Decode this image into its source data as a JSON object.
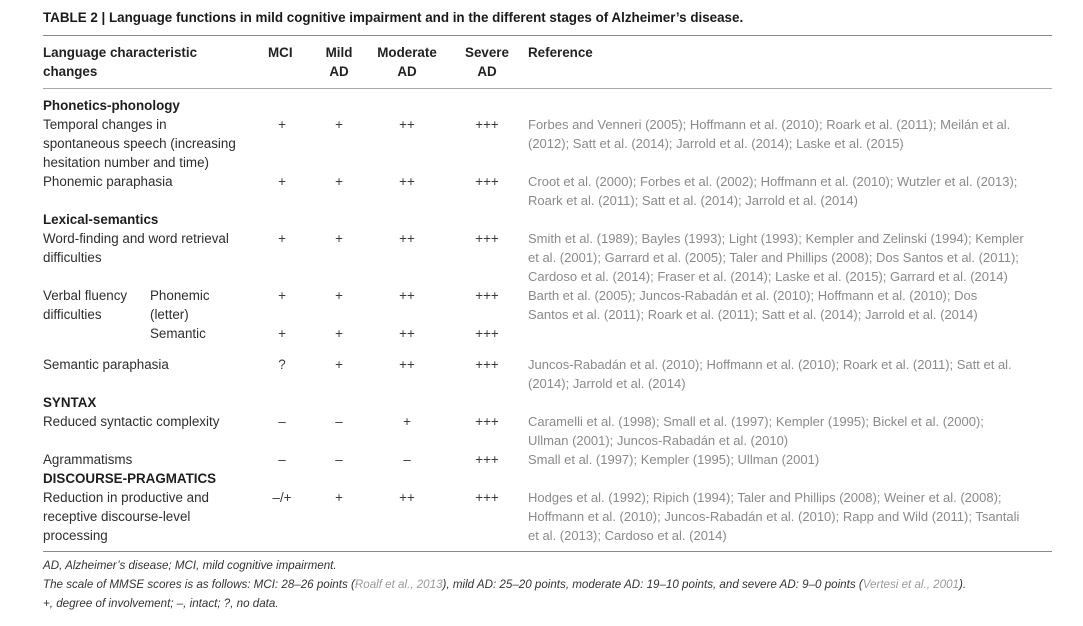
{
  "caption": "TABLE 2 | Language functions in mild cognitive impairment and in the different stages of Alzheimer’s disease.",
  "header": {
    "col1_line1": "Language characteristic",
    "col1_line2": "changes",
    "mci": "MCI",
    "mild_line1": "Mild",
    "mild_line2": "AD",
    "moderate_line1": "Moderate",
    "moderate_line2": "AD",
    "severe_line1": "Severe",
    "severe_line2": "AD",
    "reference": "Reference"
  },
  "sections": {
    "phonetics": "Phonetics-phonology",
    "lexical": "Lexical-semantics",
    "syntax": "SYNTAX",
    "discourse": "DISCOURSE-PRAGMATICS"
  },
  "rows": {
    "temporal": {
      "label": [
        "Temporal changes in",
        "spontaneous speech (increasing",
        "hesitation number and time)"
      ],
      "mci": "+",
      "mild": "+",
      "moderate": "++",
      "severe": "+++",
      "ref": [
        "Forbes and Venneri (2005); Hoffmann et al. (2010); Roark et al. (2011); Meilán et al.",
        "(2012); Satt et al. (2014); Jarrold et al. (2014); Laske et al. (2015)"
      ]
    },
    "phonemic_para": {
      "label": [
        "Phonemic paraphasia"
      ],
      "mci": "+",
      "mild": "+",
      "moderate": "++",
      "severe": "+++",
      "ref": [
        "Croot et al. (2000); Forbes et al. (2002); Hoffmann et al. (2010); Wutzler et al. (2013);",
        "Roark et al. (2011); Satt et al. (2014); Jarrold et al. (2014)"
      ]
    },
    "word_finding": {
      "label": [
        "Word-finding and word retrieval",
        "difficulties"
      ],
      "mci": "+",
      "mild": "+",
      "moderate": "++",
      "severe": "+++",
      "ref": [
        "Smith et al. (1989); Bayles (1993); Light (1993); Kempler and Zelinski (1994); Kempler",
        "et al. (2001); Garrard et al. (2005); Taler and Phillips (2008); Dos Santos et al. (2011);",
        "Cardoso et al. (2014); Fraser et al. (2014); Laske et al. (2015); Garrard et al. (2014)"
      ]
    },
    "verbal_fluency": {
      "label": [
        "Verbal fluency",
        "difficulties"
      ],
      "phonemic_label": [
        "Phonemic",
        "(letter)"
      ],
      "mci": "+",
      "mild": "+",
      "moderate": "++",
      "severe": "+++",
      "ref": [
        "Barth et al. (2005); Juncos-Rabadán et al. (2010); Hoffmann et al. (2010); Dos",
        "Santos et al. (2011); Roark et al. (2011); Satt et al. (2014); Jarrold et al. (2014)"
      ]
    },
    "semantic_fluency": {
      "label": [
        "Semantic"
      ],
      "mci": "+",
      "mild": "+",
      "moderate": "++",
      "severe": "+++"
    },
    "semantic_para": {
      "label": [
        "Semantic paraphasia"
      ],
      "mci": "?",
      "mild": "+",
      "moderate": "++",
      "severe": "+++",
      "ref": [
        "Juncos-Rabadán et al. (2010); Hoffmann et al. (2010); Roark et al. (2011); Satt et al.",
        "(2014); Jarrold et al. (2014)"
      ]
    },
    "syntactic": {
      "label": [
        "Reduced syntactic complexity"
      ],
      "mci": "–",
      "mild": "–",
      "moderate": "+",
      "severe": "+++",
      "ref": [
        "Caramelli et al. (1998); Small et al. (1997); Kempler (1995); Bickel et al. (2000);",
        "Ullman (2001); Juncos-Rabadán et al. (2010)"
      ]
    },
    "agrammatisms": {
      "label": [
        "Agrammatisms"
      ],
      "mci": "–",
      "mild": "–",
      "moderate": "–",
      "severe": "+++",
      "ref": [
        "Small et al. (1997); Kempler (1995); Ullman (2001)"
      ]
    },
    "discourse": {
      "label": [
        "Reduction in productive and",
        "receptive discourse-level",
        "processing"
      ],
      "mci": "–/+",
      "mild": "+",
      "moderate": "++",
      "severe": "+++",
      "ref": [
        "Hodges et al. (1992); Ripich (1994); Taler and Phillips (2008); Weiner et al. (2008);",
        "Hoffmann et al. (2010); Juncos-Rabadán et al. (2010); Rapp and Wild (2011); Tsantali",
        "et al. (2013); Cardoso et al. (2014)"
      ]
    }
  },
  "footnotes": {
    "line1": "AD, Alzheimer’s disease; MCI, mild cognitive impairment.",
    "line2_a": "The scale of MMSE scores is as follows: MCI: 28–26 points (",
    "line2_link1": "Roalf et al., 2013",
    "line2_b": "), mild AD: 25–20 points, moderate AD: 19–10 points, and severe AD: 9–0 points (",
    "line2_link2": "Vertesi et al., 2001",
    "line2_c": ").",
    "line3": "+, degree of involvement; –, intact; ?, no data."
  }
}
